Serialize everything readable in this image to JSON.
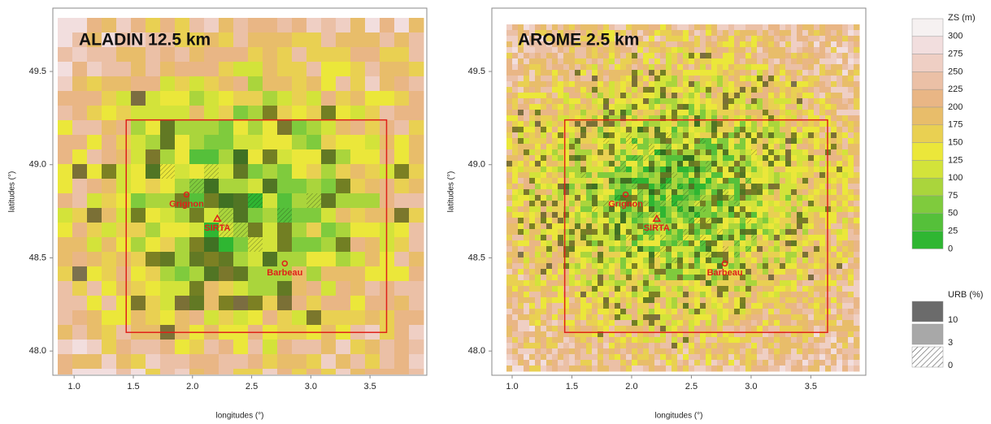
{
  "panels": [
    {
      "title": "ALADIN 12.5 km",
      "xlabel": "longitudes (°)",
      "ylabel": "latitudes (°)",
      "xlim": [
        0.82,
        3.98
      ],
      "ylim": [
        47.87,
        49.84
      ],
      "xticks": [
        {
          "value": 1,
          "label": "1.0"
        },
        {
          "value": 1.5,
          "label": "1.5"
        },
        {
          "value": 2,
          "label": "2.0"
        },
        {
          "value": 2.5,
          "label": "2.5"
        },
        {
          "value": 3,
          "label": "3.0"
        },
        {
          "value": 3.5,
          "label": "3.5"
        }
      ],
      "yticks": [
        {
          "value": 48,
          "label": "48.0"
        },
        {
          "value": 48.5,
          "label": "48.5"
        },
        {
          "value": 49,
          "label": "49.0"
        },
        {
          "value": 49.5,
          "label": "49.5"
        }
      ],
      "stations": [
        {
          "name": "Grignon",
          "lon": 1.95,
          "lat": 48.84
        },
        {
          "name": "SIRTA",
          "lon": 2.21,
          "lat": 48.71
        },
        {
          "name": "Barbeau",
          "lon": 2.78,
          "lat": 48.47
        }
      ],
      "domain_box": {
        "lon": [
          1.44,
          3.64
        ],
        "lat": [
          48.1,
          49.24
        ]
      }
    },
    {
      "title": "AROME 2.5 km",
      "xlabel": "longitudes (°)",
      "ylabel": "latitudes (°)",
      "xlim": [
        0.83,
        3.96
      ],
      "ylim": [
        47.87,
        49.84
      ],
      "xticks": [
        {
          "value": 1,
          "label": "1.0"
        },
        {
          "value": 1.5,
          "label": "1.5"
        },
        {
          "value": 2,
          "label": "2.0"
        },
        {
          "value": 2.5,
          "label": "2.5"
        },
        {
          "value": 3,
          "label": "3.0"
        },
        {
          "value": 3.5,
          "label": "3.5"
        }
      ],
      "yticks": [
        {
          "value": 48,
          "label": "48.0"
        },
        {
          "value": 48.5,
          "label": "48.5"
        },
        {
          "value": 49,
          "label": "49.0"
        },
        {
          "value": 49.5,
          "label": "49.5"
        }
      ],
      "stations": [
        {
          "name": "Grignon",
          "lon": 1.95,
          "lat": 48.84
        },
        {
          "name": "SIRTA",
          "lon": 2.21,
          "lat": 48.71
        },
        {
          "name": "Barbeau",
          "lon": 2.78,
          "lat": 48.47
        }
      ],
      "domain_box": {
        "lon": [
          1.44,
          3.64
        ],
        "lat": [
          48.1,
          49.24
        ]
      }
    }
  ],
  "legend": {
    "zs": {
      "title": "ZS (m)",
      "levels": [
        300,
        275,
        250,
        225,
        200,
        175,
        150,
        125,
        100,
        75,
        50,
        25,
        0
      ],
      "colors": [
        "#f6f1f1",
        "#f2dede",
        "#efcfc4",
        "#ebc0a6",
        "#e9b685",
        "#e8bd6a",
        "#e9d052",
        "#ebe73a",
        "#d3e33a",
        "#aad53c",
        "#7fcb3d",
        "#55c03a",
        "#2fb632"
      ]
    },
    "urb": {
      "title": "URB (%)",
      "levels": [
        10,
        3,
        0
      ]
    }
  }
}
